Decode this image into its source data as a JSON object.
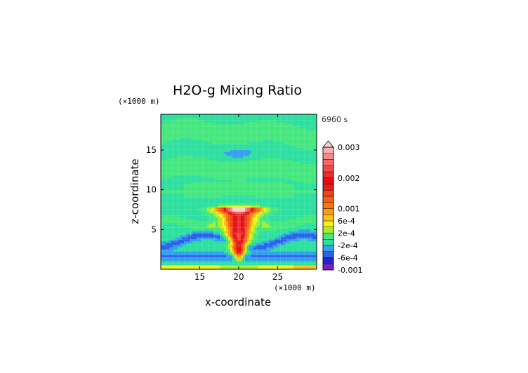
{
  "chart_data": {
    "type": "heatmap",
    "title": "H2O-g Mixing Ratio",
    "time_label": "6960 s",
    "xlabel": "x-coordinate",
    "ylabel": "z-coordinate",
    "x_unit": "(×1000 m)",
    "z_unit": "(×1000 m)",
    "xlim": [
      10,
      30
    ],
    "zlim": [
      0,
      19.5
    ],
    "x_ticks": [
      15,
      20,
      25
    ],
    "z_ticks": [
      5,
      10,
      15
    ],
    "colorbar": {
      "labels": [
        "0.003",
        "0.002",
        "0.001",
        "6e-4",
        "2e-4",
        "-2e-4",
        "-6e-4",
        "-0.001"
      ],
      "label_values": [
        0.003,
        0.002,
        0.001,
        0.0006,
        0.0002,
        -0.0002,
        -0.0006,
        -0.001
      ],
      "levels": [
        -0.001,
        -0.0008,
        -0.0006,
        -0.0004,
        -0.0002,
        0,
        0.0002,
        0.0004,
        0.0006,
        0.0008,
        0.001,
        0.0012,
        0.0014,
        0.0016,
        0.0018,
        0.002,
        0.0022,
        0.0024,
        0.0026,
        0.0028,
        0.003
      ],
      "colors": [
        "#7a1fc6",
        "#2424c8",
        "#2e62e6",
        "#33a0f0",
        "#2ee0a0",
        "#45e87e",
        "#a6ef2a",
        "#f2f21e",
        "#fcc218",
        "#fb9a14",
        "#f7760f",
        "#f45f13",
        "#ef4416",
        "#e91a1b",
        "#e50e14",
        "#ea2e30",
        "#f04a4b",
        "#f56869",
        "#f98a8b",
        "#fbb0b0"
      ],
      "extend_max": true,
      "extend_color": "#fbd2d2"
    },
    "field_features": {
      "background_value": -0.00015,
      "upper_moist_band_value": 8e-05,
      "plume_core_max": 0.0019,
      "anvil_level_km": 7.5,
      "surface_band_value": 0.0006
    }
  }
}
